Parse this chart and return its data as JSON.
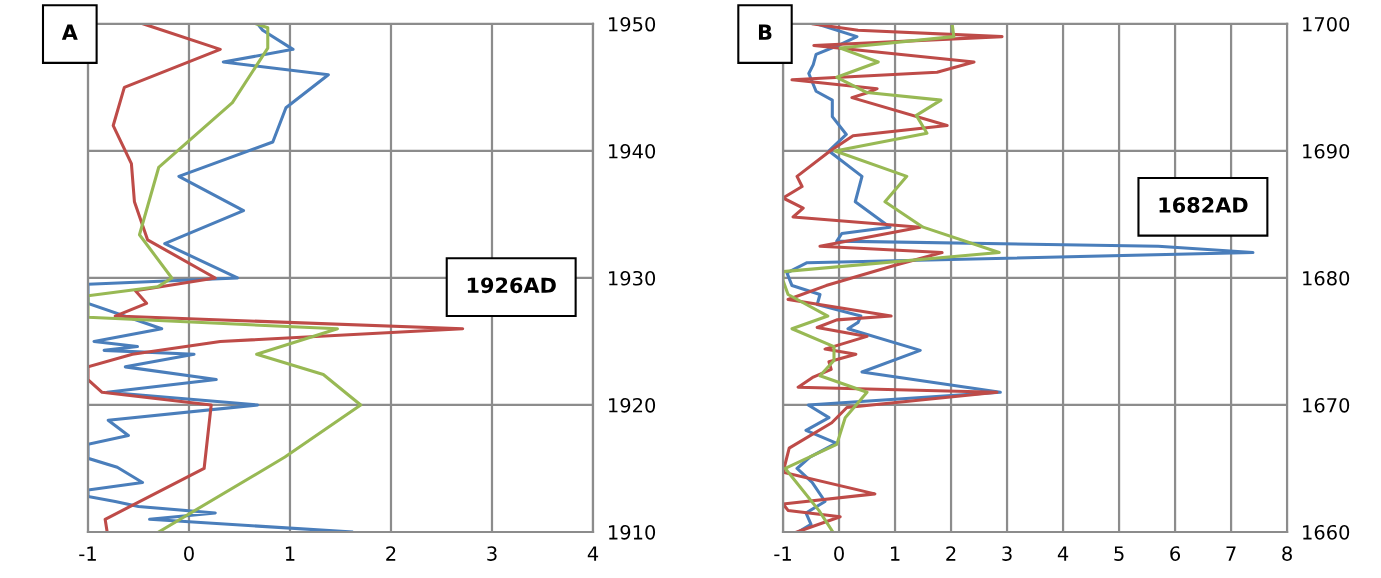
{
  "chart_data": [
    {
      "type": "line",
      "title": "A",
      "annotations": [
        "1926AD"
      ],
      "xlim": [
        -1,
        4
      ],
      "ylim": [
        1910,
        1950
      ],
      "xticks": [
        -1,
        0,
        1,
        2,
        3,
        4
      ],
      "yticks": [
        1910,
        1920,
        1930,
        1940,
        1950
      ],
      "grid": true,
      "series": [
        {
          "color": "#4a7ebb",
          "x": [
            0.68,
            0.73,
            1.03,
            0.34,
            1.38,
            0.96,
            0.83,
            -0.1,
            0.54,
            -0.24,
            0.48,
            -1.0,
            -1.0,
            -0.27,
            -0.94,
            -0.51,
            -0.84,
            0.05,
            -0.63,
            0.27,
            -0.81,
            0.68,
            -0.8,
            -0.6,
            -1.0,
            -1.0,
            -0.71,
            -0.46,
            -1.0,
            -1.0,
            -0.73,
            -0.5,
            0.26,
            -0.39,
            1.61
          ],
          "values": [
            1950,
            1949.5,
            1948,
            1947,
            1946,
            1943.4,
            1940.7,
            1938,
            1935.3,
            1932.7,
            1930,
            1929.5,
            1928,
            1926,
            1925,
            1924.6,
            1924.3,
            1924,
            1923,
            1922,
            1921,
            1920,
            1918.8,
            1917.6,
            1916.9,
            1915.8,
            1915.1,
            1913.9,
            1913.3,
            1912.8,
            1912.4,
            1912,
            1911.5,
            1911,
            1910
          ]
        },
        {
          "color": "#be4b48",
          "x": [
            -0.45,
            0.31,
            -0.64,
            -0.75,
            -0.57,
            -0.54,
            -0.41,
            0.26,
            -0.53,
            -0.42,
            -0.73,
            2.71,
            0.31,
            -0.56,
            -1.0,
            -1.0,
            -0.86,
            0.22,
            0.15,
            -0.83,
            -0.81
          ],
          "values": [
            1950,
            1948,
            1945,
            1942,
            1939,
            1936,
            1933,
            1930,
            1929,
            1928,
            1927,
            1926,
            1925,
            1924,
            1923,
            1922,
            1921,
            1920,
            1915,
            1911,
            1910
          ]
        },
        {
          "color": "#98b954",
          "x": [
            0.67,
            0.78,
            0.78,
            0.43,
            -0.3,
            -0.49,
            -0.17,
            -0.31,
            -1.0,
            -1.0,
            1.47,
            0.67,
            1.33,
            1.7,
            0.95,
            -0.3
          ],
          "values": [
            1950,
            1949.7,
            1948.1,
            1943.8,
            1938.7,
            1933.4,
            1930,
            1929.3,
            1928.6,
            1926.9,
            1926,
            1924,
            1922.4,
            1920,
            1915.9,
            1910
          ]
        }
      ]
    },
    {
      "type": "line",
      "title": "B",
      "annotations": [
        "1682AD"
      ],
      "xlim": [
        -1,
        8
      ],
      "ylim": [
        1660,
        1700
      ],
      "xticks": [
        -1,
        0,
        1,
        2,
        3,
        4,
        5,
        6,
        7,
        8
      ],
      "yticks": [
        1660,
        1670,
        1680,
        1690,
        1700
      ],
      "grid": true,
      "series": [
        {
          "color": "#4a7ebb",
          "x": [
            -0.39,
            0.32,
            -0.02,
            -0.41,
            -0.46,
            -0.54,
            -0.41,
            -0.12,
            -0.12,
            0.13,
            -0.18,
            0.41,
            0.29,
            0.91,
            0.05,
            -0.04,
            5.7,
            7.39,
            -0.57,
            -0.93,
            -0.84,
            -0.34,
            -0.39,
            0.39,
            0.34,
            0.16,
            1.45,
            0.41,
            2.88,
            -0.55,
            -0.18,
            -0.59,
            -0.05,
            -0.52,
            -0.75,
            -0.48,
            -0.25,
            -0.59,
            -0.5,
            -0.73
          ],
          "values": [
            1700,
            1699,
            1698.3,
            1697.6,
            1696.8,
            1696.1,
            1694.7,
            1694,
            1692.7,
            1691.3,
            1690,
            1688,
            1686,
            1684,
            1683.5,
            1682.9,
            1682.5,
            1682,
            1681.2,
            1680.4,
            1679.4,
            1678.7,
            1677.9,
            1677,
            1676.5,
            1676,
            1674.3,
            1672.6,
            1671,
            1670,
            1669,
            1668,
            1667,
            1665.9,
            1665,
            1663.9,
            1662.4,
            1661.5,
            1660.6,
            1660
          ]
        },
        {
          "color": "#be4b48",
          "x": [
            -0.46,
            0.34,
            2.91,
            -0.45,
            2.41,
            1.75,
            -0.84,
            0.68,
            0.52,
            0.23,
            1.93,
            0.25,
            -0.16,
            -0.75,
            -0.66,
            -1.0,
            -0.64,
            -0.82,
            1.45,
            -0.34,
            1.84,
            1.0,
            -0.23,
            -0.91,
            0.93,
            -0.04,
            -0.39,
            0.5,
            -0.25,
            0.3,
            -0.18,
            -0.14,
            -0.46,
            -0.73,
            2.82,
            0.14,
            -0.13,
            -0.89,
            -1.0,
            0.64,
            -1.0,
            -0.91,
            0.02,
            -0.75
          ],
          "values": [
            1700,
            1699.5,
            1699,
            1698.3,
            1697,
            1696.2,
            1695.6,
            1694.9,
            1694.6,
            1694.2,
            1692,
            1691.2,
            1690,
            1688,
            1687.2,
            1686.3,
            1685.5,
            1684.8,
            1684,
            1682.5,
            1682,
            1681,
            1679.4,
            1678.3,
            1677,
            1676.7,
            1676.1,
            1675.4,
            1674.4,
            1674,
            1673.4,
            1672.8,
            1672.2,
            1671.4,
            1671,
            1669.8,
            1668.6,
            1666.6,
            1664.7,
            1663,
            1662.2,
            1661.7,
            1661.2,
            1660
          ]
        },
        {
          "color": "#98b954",
          "x": [
            2.02,
            2.05,
            0.02,
            0.7,
            -0.04,
            0.5,
            1.82,
            1.38,
            1.57,
            -0.07,
            1.21,
            0.82,
            1.5,
            2.86,
            -1.0,
            -1.0,
            -0.91,
            -0.2,
            -0.84,
            -0.09,
            -0.09,
            -0.34,
            0.5,
            0.11,
            -0.04,
            -0.96,
            -0.36,
            -0.11
          ],
          "values": [
            1700,
            1699,
            1698.1,
            1697,
            1695.8,
            1694.6,
            1694,
            1692.8,
            1691.4,
            1690,
            1688,
            1686,
            1684,
            1682,
            1680.5,
            1679.8,
            1678.7,
            1677,
            1676,
            1674.6,
            1673.5,
            1672.3,
            1671,
            1669,
            1666.9,
            1665,
            1661.7,
            1660
          ]
        }
      ]
    }
  ]
}
